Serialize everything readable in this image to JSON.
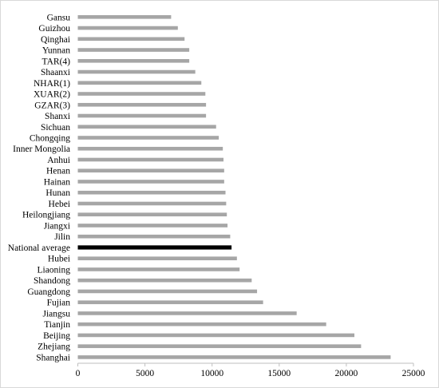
{
  "chart_data": {
    "type": "bar",
    "orientation": "horizontal",
    "categories": [
      "Gansu",
      "Guizhou",
      "Qinghai",
      "Yunnan",
      "TAR(4)",
      "Shaanxi",
      "NHAR(1)",
      "XUAR(2)",
      "GZAR(3)",
      "Shanxi",
      "Sichuan",
      "Chongqing",
      "Inner Mongolia",
      "Anhui",
      "Henan",
      "Hainan",
      "Hunan",
      "Hebei",
      "Heilongjiang",
      "Jiangxi",
      "Jilin",
      "National average",
      "Hubei",
      "Liaoning",
      "Shandong",
      "Guangdong",
      "Fujian",
      "Jiangsu",
      "Tianjin",
      "Beijing",
      "Zhejiang",
      "Shanghai"
    ],
    "values": [
      6950,
      7450,
      7950,
      8300,
      8300,
      8750,
      9200,
      9500,
      9550,
      9550,
      10300,
      10500,
      10800,
      10850,
      10900,
      10900,
      11000,
      11050,
      11100,
      11150,
      11350,
      11450,
      11850,
      12050,
      12950,
      13350,
      13800,
      16300,
      18500,
      20600,
      21100,
      23300
    ],
    "highlight": "National average",
    "xlim": [
      0,
      25000
    ],
    "xticks": [
      0,
      5000,
      10000,
      15000,
      20000,
      25000
    ],
    "grid": false,
    "legend": "none",
    "colors": {
      "bar": "#a6a6a6",
      "highlight": "#000000",
      "axis": "#bfbfbf",
      "frame": "#d9d9d9"
    }
  }
}
